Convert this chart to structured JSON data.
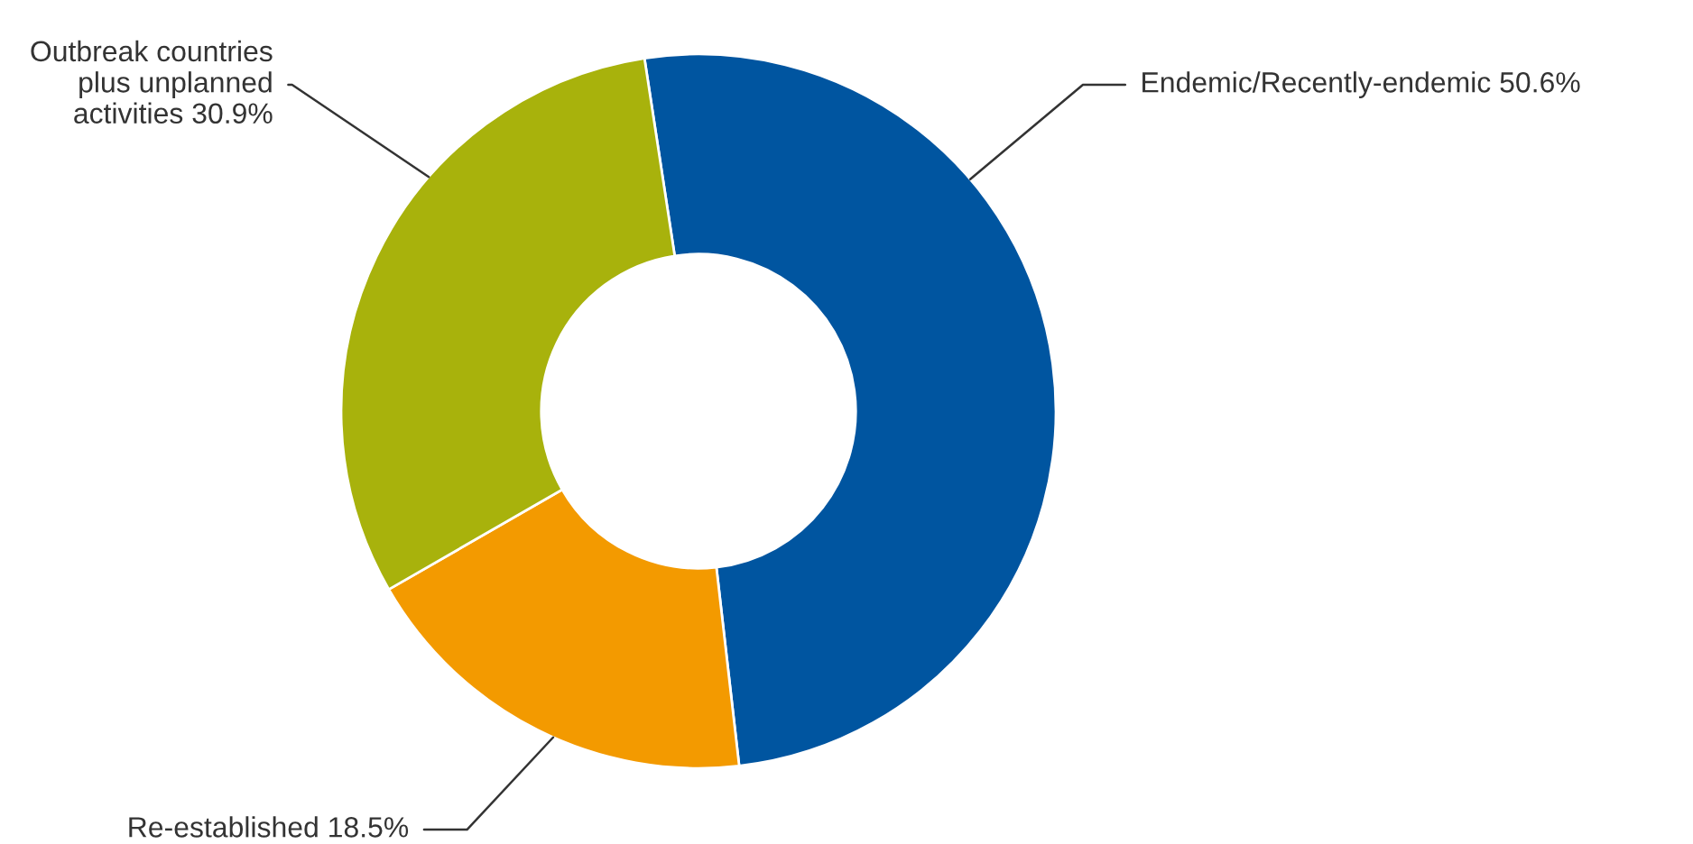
{
  "chart_data": {
    "type": "donut",
    "categories": [
      "Endemic/Recently-endemic",
      "Re-established",
      "Outbreak countries\nplus unplanned\nactivities"
    ],
    "values": [
      50.6,
      18.5,
      30.9
    ],
    "value_labels": [
      "50.6%",
      "18.5%",
      "30.9%"
    ],
    "colors": [
      "#0055a0",
      "#f39a00",
      "#a8b20c"
    ],
    "legend": false
  }
}
